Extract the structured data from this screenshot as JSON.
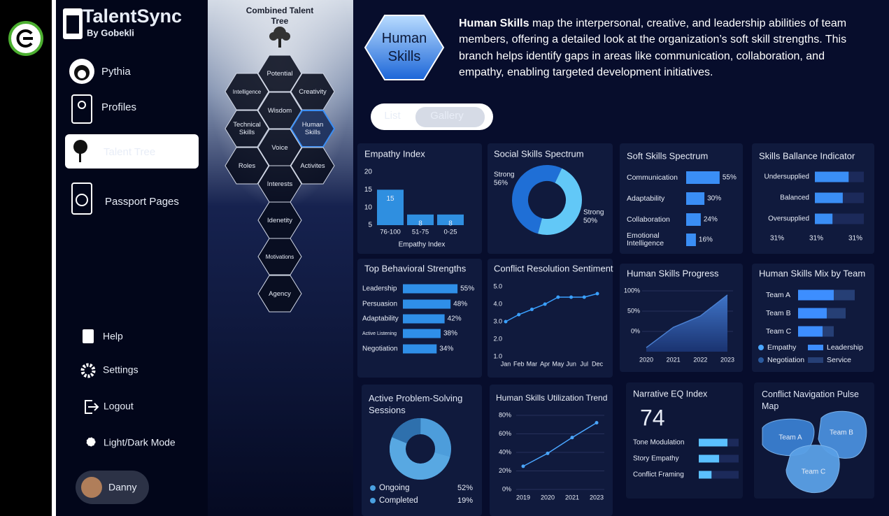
{
  "brand": {
    "name": "TalentSync",
    "byline": "By Gobekli"
  },
  "nav": [
    "Pythia",
    "Profiles",
    "Talent Tree",
    "Passport Pages"
  ],
  "nav_active": 2,
  "footer_nav": [
    "Help",
    "Settings",
    "Logout",
    "Light/Dark Mode"
  ],
  "user": "Danny",
  "tree": {
    "title": "Combined Talent Tree",
    "nodes": [
      "Potential",
      "Intelligence",
      "Creativity",
      "Wisdom",
      "Technical Skills",
      "Human Skills",
      "Voice",
      "Roles",
      "Activites",
      "Interests",
      "Idenetity",
      "Motivations",
      "Agency"
    ],
    "selected": 5
  },
  "header": {
    "badge": "Human Skills",
    "lead": "Human Skills",
    "text": "map the interpersonal, creative, and leadership abilities of team members, offering a detailed look at the organization’s soft skill strengths. This branch helps identify gaps in areas like communication, collaboration, and empathy, enabling targeted development initiatives."
  },
  "view_toggle": {
    "options": [
      "List",
      "Gallery"
    ],
    "selected": 1
  },
  "cards": {
    "empathy_index": {
      "type": "bar",
      "title": "Empathy Index",
      "categories": [
        "76-100",
        "51-75",
        "0-25"
      ],
      "values": [
        15,
        8,
        8
      ],
      "ylim": [
        5,
        20
      ],
      "yticks": [
        5,
        10,
        15,
        20
      ],
      "xlabel": "Empathy Index",
      "color": "#2f8fe0"
    },
    "social_skills": {
      "type": "donut",
      "title": "Social Skills Spectrum",
      "categories": [
        "Strong",
        "Strong"
      ],
      "values": [
        56,
        50
      ],
      "value_labels": [
        "56%",
        "50%"
      ],
      "colors": [
        "#1f6fd6",
        "#62c8f7"
      ]
    },
    "soft_skills": {
      "type": "hbar",
      "title": "Soft Skills Spectrum",
      "categories": [
        "Communication",
        "Adaptability",
        "Collaboration",
        "Emotional Intelligence"
      ],
      "values": [
        55,
        30,
        24,
        16
      ],
      "value_labels": [
        "55%",
        "30%",
        "24%",
        "16%"
      ],
      "xlim": [
        0,
        100
      ],
      "color": "#3a8ef5"
    },
    "skills_balance": {
      "type": "hbar",
      "title": "Skills Ballance Indicator",
      "categories": [
        "Undersupplied",
        "Balanced",
        "Oversupplied"
      ],
      "values": [
        69,
        57,
        36
      ],
      "xlim": [
        0,
        100
      ],
      "color": "#3a8ef5",
      "footer": [
        "31%",
        "31%",
        "31%"
      ]
    },
    "top_behavioral": {
      "type": "hbar",
      "title": "Top Behavioral Strengths",
      "categories": [
        "Leadership",
        "Persuasion",
        "Adaptability",
        "Active Listening",
        "Negotiation"
      ],
      "values": [
        55,
        48,
        42,
        38,
        34
      ],
      "value_labels": [
        "55%",
        "48%",
        "42%",
        "38%",
        "34%"
      ],
      "xlim": [
        0,
        100
      ],
      "color": "#2f8fe8"
    },
    "conflict_resolution": {
      "type": "line",
      "title": "Conflict Resolution Sentiment",
      "categories": [
        "Jan",
        "Feb",
        "Mar",
        "Apr",
        "May",
        "Jun",
        "Jul",
        "Dec"
      ],
      "values": [
        3.0,
        3.4,
        3.7,
        4.0,
        4.4,
        4.4,
        4.4,
        4.6
      ],
      "ylim": [
        1,
        5
      ],
      "yticks": [
        {
          "value": 1,
          "label": "1.0"
        },
        {
          "value": 2,
          "label": "2.0"
        },
        {
          "value": 3,
          "label": "3.0"
        },
        {
          "value": 4,
          "label": "4.0"
        },
        {
          "value": 5,
          "label": "5.0"
        }
      ],
      "color": "#3aa0ff"
    },
    "progress": {
      "type": "area",
      "title": "Human Skills Progress",
      "categories": [
        "2020",
        "2021",
        "2022",
        "2023"
      ],
      "values": [
        -40,
        10,
        38,
        90
      ],
      "ylim": [
        -50,
        100
      ],
      "yticks": [
        {
          "value": 0,
          "label": "0%"
        },
        {
          "value": 50,
          "label": "50%"
        },
        {
          "value": 100,
          "label": "100%"
        }
      ],
      "color": "#4a7fd0"
    },
    "team_mix": {
      "type": "stacked_hbar",
      "title": "Human Skills Mix by Team",
      "categories": [
        "Team A",
        "Team B",
        "Team C"
      ],
      "xlim": [
        0,
        100
      ],
      "series": [
        {
          "name": "Empathy",
          "color": "#4aa6ff"
        },
        {
          "name": "Leadership",
          "color": "#3d8eff",
          "values": [
            51,
            41,
            35
          ]
        },
        {
          "name": "Negotiation",
          "color": "#2a5a9e"
        },
        {
          "name": "Service",
          "color": "#263f75",
          "values": [
            30,
            27,
            16
          ]
        }
      ]
    },
    "problem_solving": {
      "type": "donut",
      "title": "Active Problem-Solving Sessions",
      "categories": [
        "Ongoing",
        "Completed"
      ],
      "values": [
        52,
        19
      ],
      "value_labels": [
        "52%",
        "19%"
      ],
      "colors": [
        "#58a8e2",
        "#2e70ad"
      ]
    },
    "utilization": {
      "type": "line",
      "title": "Human Skills Utilization Trend",
      "categories": [
        "2019",
        "2020",
        "2021",
        "2023"
      ],
      "values": [
        25,
        39,
        56,
        72
      ],
      "ylim": [
        0,
        80
      ],
      "yticks": [
        {
          "value": 0,
          "label": "0%"
        },
        {
          "value": 20,
          "label": "20%"
        },
        {
          "value": 40,
          "label": "40%"
        },
        {
          "value": 60,
          "label": "60%"
        },
        {
          "value": 80,
          "label": "80%"
        }
      ],
      "color": "#4aa6ff"
    },
    "narrative_eq": {
      "type": "kpi",
      "title": "Narrative EQ Index",
      "kpi": 74,
      "categories": [
        "Tone Modulation",
        "Story Empathy",
        "Conflict Framing"
      ],
      "values": [
        72,
        51,
        32
      ],
      "xlim": [
        0,
        100
      ],
      "color": "#5bc0ff"
    },
    "pulse_map": {
      "type": "map",
      "title": "Conflict Navigation Pulse Map",
      "regions": [
        "Team A",
        "Team B",
        "Team C"
      ],
      "colors": [
        "#3a7fd0",
        "#4a8fdc",
        "#5aa0e6"
      ]
    }
  }
}
